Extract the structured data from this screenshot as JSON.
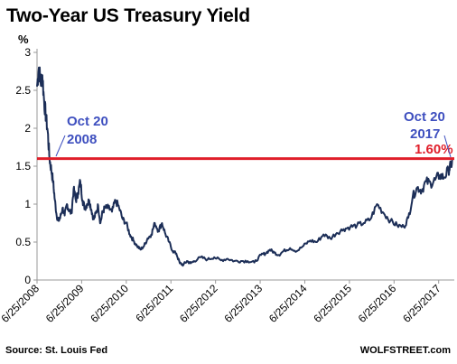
{
  "chart_data": {
    "type": "line",
    "title": "Two-Year US Treasury Yield",
    "ylabel": "%",
    "xlabel": "",
    "ylim": [
      0,
      3
    ],
    "yticks": [
      0,
      0.5,
      1,
      1.5,
      2,
      2.5,
      3
    ],
    "ytick_labels": [
      "0",
      "0.5",
      "1",
      "1.5",
      "2",
      "2.5",
      "3"
    ],
    "xlim": [
      2008.48,
      2017.83
    ],
    "xticks": [
      2008.48,
      2009.48,
      2010.48,
      2011.48,
      2012.48,
      2013.48,
      2014.48,
      2015.48,
      2016.48,
      2017.48
    ],
    "xtick_labels": [
      "6/25/2008",
      "6/25/2009",
      "6/25/2010",
      "6/25/2011",
      "6/25/2012",
      "6/25/2013",
      "6/25/2014",
      "6/25/2015",
      "6/25/2016",
      "6/25/2017"
    ],
    "series_color": "#1c2e57",
    "series": [
      {
        "name": "",
        "x": [
          2008.48,
          2008.52,
          2008.56,
          2008.6,
          2008.64,
          2008.68,
          2008.72,
          2008.76,
          2008.8,
          2008.84,
          2008.88,
          2008.92,
          2008.96,
          2009.0,
          2009.05,
          2009.1,
          2009.15,
          2009.2,
          2009.25,
          2009.3,
          2009.35,
          2009.4,
          2009.45,
          2009.5,
          2009.55,
          2009.6,
          2009.65,
          2009.7,
          2009.75,
          2009.8,
          2009.85,
          2009.9,
          2009.95,
          2010.0,
          2010.08,
          2010.16,
          2010.24,
          2010.32,
          2010.4,
          2010.48,
          2010.56,
          2010.64,
          2010.72,
          2010.8,
          2010.88,
          2010.96,
          2011.04,
          2011.12,
          2011.2,
          2011.28,
          2011.36,
          2011.44,
          2011.52,
          2011.6,
          2011.68,
          2011.76,
          2011.84,
          2011.92,
          2012.0,
          2012.15,
          2012.3,
          2012.45,
          2012.6,
          2012.75,
          2012.9,
          2013.05,
          2013.2,
          2013.35,
          2013.5,
          2013.6,
          2013.7,
          2013.8,
          2013.9,
          2014.0,
          2014.15,
          2014.3,
          2014.45,
          2014.6,
          2014.75,
          2014.9,
          2015.05,
          2015.2,
          2015.35,
          2015.5,
          2015.65,
          2015.8,
          2015.95,
          2016.1,
          2016.25,
          2016.4,
          2016.55,
          2016.7,
          2016.8,
          2016.9,
          2017.0,
          2017.1,
          2017.2,
          2017.3,
          2017.4,
          2017.5,
          2017.6,
          2017.7,
          2017.75,
          2017.8
        ],
        "values": [
          2.55,
          2.8,
          2.6,
          2.7,
          2.35,
          2.15,
          1.95,
          1.6,
          1.45,
          1.3,
          1.05,
          0.85,
          0.78,
          0.82,
          0.95,
          0.85,
          1.0,
          0.92,
          0.88,
          1.2,
          1.05,
          1.15,
          1.3,
          1.05,
          0.95,
          1.0,
          1.05,
          0.92,
          0.8,
          0.88,
          0.98,
          0.75,
          0.9,
          0.95,
          0.95,
          0.9,
          1.05,
          0.95,
          0.8,
          0.75,
          0.6,
          0.52,
          0.45,
          0.4,
          0.45,
          0.55,
          0.6,
          0.75,
          0.65,
          0.75,
          0.6,
          0.5,
          0.38,
          0.35,
          0.22,
          0.2,
          0.25,
          0.22,
          0.25,
          0.3,
          0.27,
          0.3,
          0.26,
          0.28,
          0.25,
          0.25,
          0.25,
          0.23,
          0.33,
          0.35,
          0.4,
          0.36,
          0.33,
          0.38,
          0.42,
          0.38,
          0.45,
          0.52,
          0.5,
          0.6,
          0.55,
          0.62,
          0.67,
          0.7,
          0.72,
          0.75,
          0.8,
          1.0,
          0.88,
          0.78,
          0.72,
          0.7,
          0.82,
          1.1,
          1.22,
          1.18,
          1.3,
          1.27,
          1.32,
          1.38,
          1.35,
          1.45,
          1.5,
          1.6
        ]
      }
    ],
    "reference_line": {
      "value": 1.6,
      "color": "#e01e2a"
    },
    "annotations": [
      {
        "text_lines": [
          "Oct 20",
          "2008"
        ],
        "color": "#3e4fbf",
        "x": 2008.8,
        "y": 1.58
      },
      {
        "text_lines": [
          "Oct 20",
          "2017"
        ],
        "color": "#3e4fbf",
        "x": 2017.8,
        "y": 1.6
      },
      {
        "text_lines": [
          "1.60%"
        ],
        "color": "#e01e2a",
        "x": 2017.8,
        "y": 1.6
      }
    ],
    "source_text": "Source: St. Louis Fed",
    "credit_text": "WOLFSTREET.com",
    "grid": false
  }
}
